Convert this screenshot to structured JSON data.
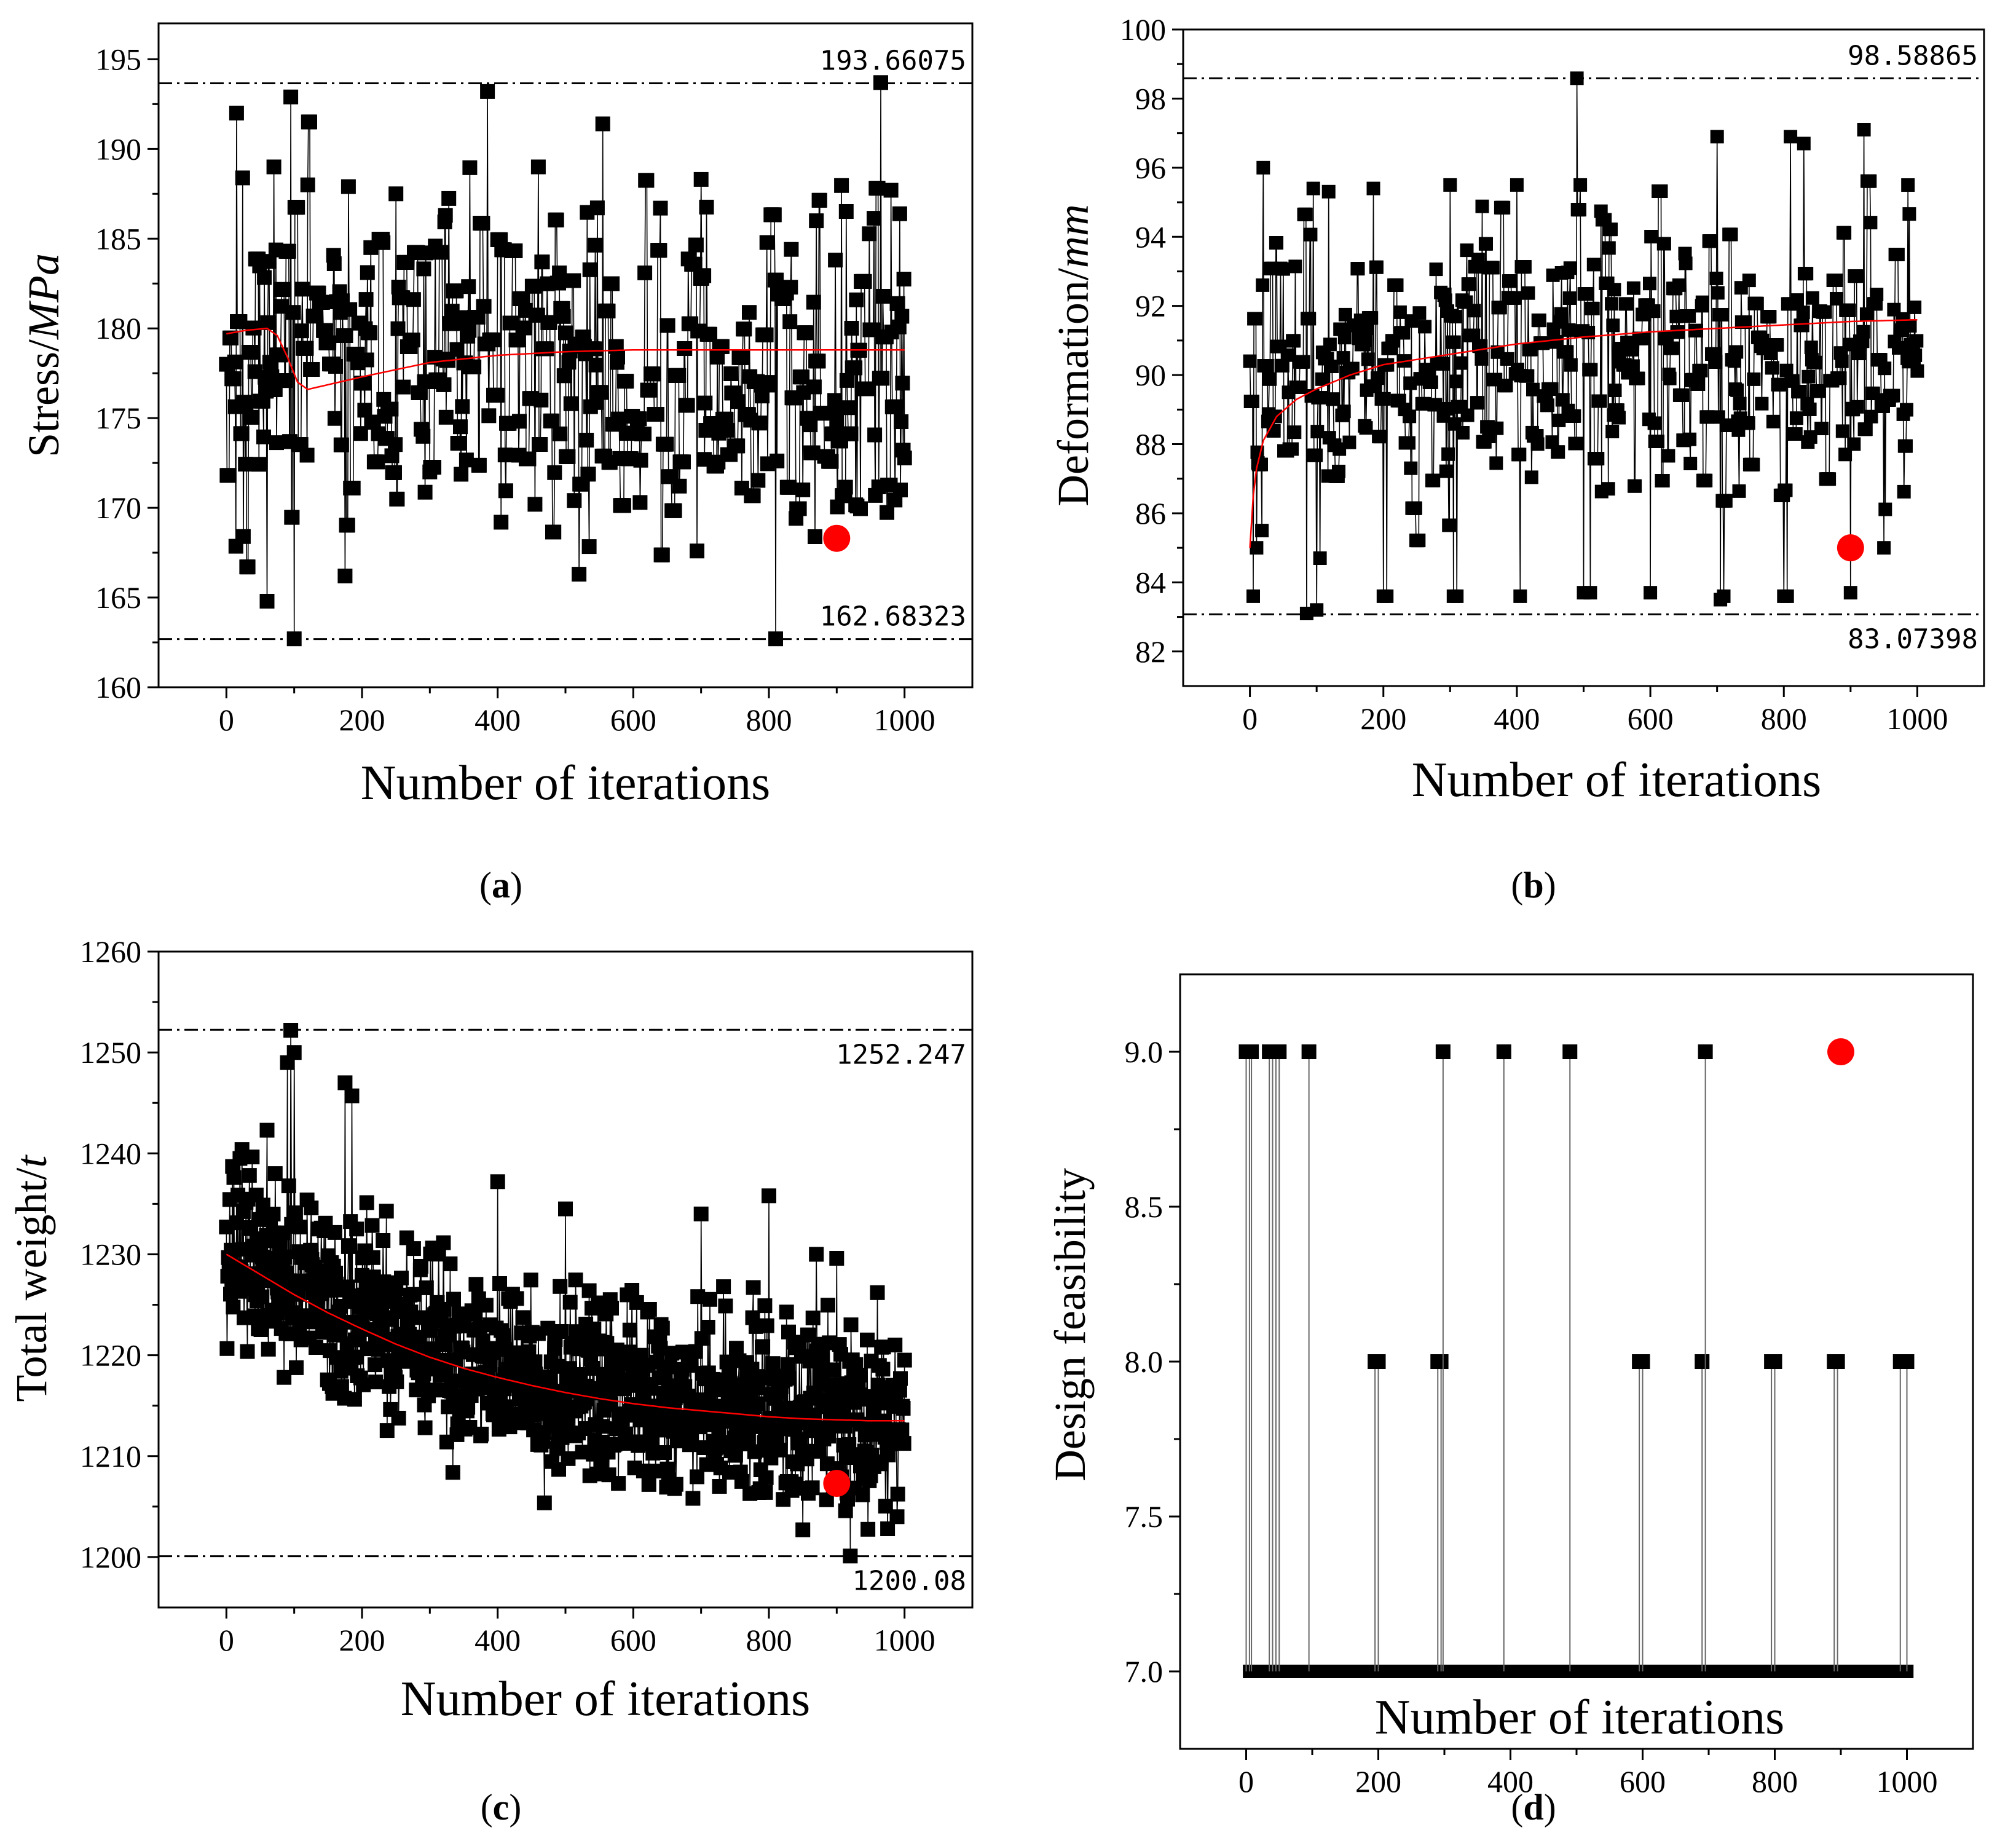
{
  "figure": {
    "panel_labels": [
      {
        "open": "(",
        "letter": "a",
        "close": ")"
      },
      {
        "open": "(",
        "letter": "b",
        "close": ")"
      },
      {
        "open": "(",
        "letter": "c",
        "close": ")"
      },
      {
        "open": "(",
        "letter": "d",
        "close": ")"
      }
    ]
  },
  "colors": {
    "series": "#000000",
    "trend": "#ff0000",
    "best": "#ff0000",
    "bound": "#000000"
  },
  "chart_data": [
    {
      "id": "a",
      "type": "line",
      "xlabel": "Number of iterations",
      "ylabel_prefix": "Stress/",
      "ylabel_italic": "MPa",
      "xlim": [
        -100,
        1100
      ],
      "ylim": [
        160,
        197
      ],
      "xticks": [
        0,
        200,
        400,
        600,
        800,
        1000
      ],
      "yticks": [
        160,
        165,
        170,
        175,
        180,
        185,
        190,
        195
      ],
      "bounds": [
        {
          "value": 193.66075,
          "label": "193.66075",
          "label_pos": "above"
        },
        {
          "value": 162.68323,
          "label": "162.68323",
          "label_pos": "above"
        }
      ],
      "best": {
        "x": 900,
        "y": 168.3
      },
      "trend": [
        [
          0,
          179.7
        ],
        [
          30,
          179.9
        ],
        [
          60,
          180.0
        ],
        [
          75,
          179.6
        ],
        [
          90,
          178.4
        ],
        [
          105,
          177.0
        ],
        [
          120,
          176.6
        ],
        [
          200,
          177.3
        ],
        [
          300,
          178.1
        ],
        [
          400,
          178.5
        ],
        [
          500,
          178.7
        ],
        [
          600,
          178.8
        ],
        [
          700,
          178.8
        ],
        [
          800,
          178.8
        ],
        [
          900,
          178.8
        ],
        [
          1000,
          178.8
        ]
      ],
      "series": {
        "name": "Stress",
        "seed": 11,
        "n": 1000,
        "base": 178,
        "spread": 7,
        "plateau": 0.55,
        "min": 162.68323,
        "max": 193.66075,
        "x": [
          0,
          15,
          25,
          70,
          95,
          100,
          120,
          175,
          180,
          250,
          300,
          385,
          405,
          460,
          520,
          555,
          610,
          640,
          700,
          760,
          810,
          850,
          870,
          900,
          930,
          965,
          980,
          995
        ],
        "y": [
          178,
          192,
          168.4,
          189,
          192.9,
          162.7,
          188,
          166.2,
          187.9,
          187.5,
          172,
          193.2,
          169.2,
          189,
          166.3,
          191.4,
          170.3,
          186.7,
          188.3,
          171.1,
          162.7,
          171,
          186,
          174.8,
          170.1,
          193.7,
          187.7,
          174.8
        ]
      }
    },
    {
      "id": "b",
      "type": "line",
      "xlabel": "Number of iterations",
      "ylabel_prefix": "Deformation/",
      "ylabel_italic": "mm",
      "xlim": [
        -100,
        1100
      ],
      "ylim": [
        81,
        100
      ],
      "xticks": [
        0,
        200,
        400,
        600,
        800,
        1000
      ],
      "yticks": [
        82,
        84,
        86,
        88,
        90,
        92,
        94,
        96,
        98,
        100
      ],
      "bounds": [
        {
          "value": 98.58865,
          "label": "98.58865",
          "label_pos": "above"
        },
        {
          "value": 83.07398,
          "label": "83.07398",
          "label_pos": "below"
        }
      ],
      "best": {
        "x": 900,
        "y": 85.0
      },
      "trend": [
        [
          0,
          85.0
        ],
        [
          5,
          86.5
        ],
        [
          10,
          87.3
        ],
        [
          20,
          88.1
        ],
        [
          40,
          88.8
        ],
        [
          70,
          89.3
        ],
        [
          100,
          89.6
        ],
        [
          150,
          90.0
        ],
        [
          200,
          90.3
        ],
        [
          300,
          90.6
        ],
        [
          400,
          90.9
        ],
        [
          500,
          91.1
        ],
        [
          600,
          91.25
        ],
        [
          700,
          91.35
        ],
        [
          800,
          91.45
        ],
        [
          900,
          91.55
        ],
        [
          1000,
          91.6
        ]
      ],
      "series": {
        "name": "Deformation",
        "seed": 23,
        "n": 1000,
        "base": 90.5,
        "spread": 2.8,
        "plateau": 0.6,
        "min": 83.07398,
        "max": 98.58865,
        "x": [
          0,
          5,
          10,
          18,
          20,
          85,
          95,
          100,
          105,
          185,
          200,
          205,
          300,
          305,
          310,
          400,
          405,
          490,
          495,
          500,
          510,
          600,
          700,
          705,
          710,
          800,
          805,
          810,
          830,
          900,
          905,
          920,
          950
        ],
        "y": [
          90.4,
          83.6,
          85.0,
          85.5,
          96.0,
          83.1,
          95.4,
          83.2,
          84.7,
          95.4,
          83.6,
          83.6,
          95.5,
          83.6,
          83.6,
          95.5,
          83.6,
          98.59,
          95.5,
          83.7,
          83.7,
          83.7,
          96.9,
          83.5,
          83.6,
          83.6,
          83.6,
          96.9,
          96.7,
          83.7,
          88,
          97.1,
          85.0
        ]
      }
    },
    {
      "id": "c",
      "type": "line",
      "xlabel": "Number of iterations",
      "ylabel_prefix": "Total weight/",
      "ylabel_italic": "t",
      "xlim": [
        -100,
        1100
      ],
      "ylim": [
        1195,
        1260
      ],
      "xticks": [
        0,
        200,
        400,
        600,
        800,
        1000
      ],
      "yticks": [
        1200,
        1210,
        1220,
        1230,
        1240,
        1250,
        1260
      ],
      "bounds": [
        {
          "value": 1252.247,
          "label": "1252.247",
          "label_pos": "below"
        },
        {
          "value": 1200.08,
          "label": "1200.08",
          "label_pos": "below"
        }
      ],
      "best": {
        "x": 900,
        "y": 1207.3
      },
      "trend": [
        [
          0,
          1230
        ],
        [
          50,
          1228
        ],
        [
          100,
          1226
        ],
        [
          150,
          1224.2
        ],
        [
          200,
          1222.6
        ],
        [
          250,
          1221.1
        ],
        [
          300,
          1219.8
        ],
        [
          350,
          1218.7
        ],
        [
          400,
          1217.8
        ],
        [
          450,
          1217
        ],
        [
          500,
          1216.3
        ],
        [
          550,
          1215.7
        ],
        [
          600,
          1215.2
        ],
        [
          650,
          1214.8
        ],
        [
          700,
          1214.5
        ],
        [
          750,
          1214.2
        ],
        [
          800,
          1213.9
        ],
        [
          850,
          1213.7
        ],
        [
          900,
          1213.6
        ],
        [
          950,
          1213.5
        ],
        [
          1000,
          1213.5
        ]
      ],
      "series": {
        "name": "Total weight",
        "seed": 37,
        "n": 1000,
        "base": 1222,
        "spread": 6.5,
        "trend_follow": true,
        "min": 1200.08,
        "max": 1252.247,
        "x": [
          0,
          20,
          60,
          90,
          95,
          100,
          175,
          185,
          400,
          500,
          700,
          800,
          850,
          870,
          900,
          920,
          960,
          975
        ],
        "y": [
          1232.7,
          1239.5,
          1242.3,
          1249,
          1252.2,
          1250,
          1247,
          1245.7,
          1237.2,
          1234.5,
          1234,
          1235.8,
          1202.7,
          1230,
          1229.6,
          1200.1,
          1226.2,
          1202.8
        ]
      }
    },
    {
      "id": "d",
      "type": "line",
      "xlabel": "Number of iterations",
      "ylabel_prefix": "Design feasibility",
      "ylabel_italic": "",
      "xlim": [
        -100,
        1100
      ],
      "ylim": [
        6.75,
        9.25
      ],
      "xticks": [
        0,
        200,
        400,
        600,
        800,
        1000
      ],
      "yticks": [
        7.0,
        7.5,
        8.0,
        8.5,
        9.0
      ],
      "ytick_labels": [
        "7.0",
        "7.5",
        "8.0",
        "8.5",
        "9.0"
      ],
      "bounds": [],
      "best": {
        "x": 900,
        "y": 9.0
      },
      "trend": [],
      "series": {
        "name": "Design feasibility",
        "baseline": 7.0,
        "n": 1000,
        "spikes": [
          [
            0,
            9.0
          ],
          [
            5,
            9.0
          ],
          [
            8,
            9.0
          ],
          [
            35,
            9.0
          ],
          [
            40,
            9.0
          ],
          [
            45,
            9.0
          ],
          [
            50,
            9.0
          ],
          [
            95,
            9.0
          ],
          [
            195,
            8.0
          ],
          [
            200,
            8.0
          ],
          [
            290,
            8.0
          ],
          [
            295,
            8.0
          ],
          [
            298,
            9.0
          ],
          [
            390,
            9.0
          ],
          [
            490,
            9.0
          ],
          [
            595,
            8.0
          ],
          [
            600,
            8.0
          ],
          [
            690,
            8.0
          ],
          [
            695,
            9.0
          ],
          [
            795,
            8.0
          ],
          [
            800,
            8.0
          ],
          [
            890,
            8.0
          ],
          [
            895,
            8.0
          ],
          [
            990,
            8.0
          ],
          [
            1000,
            8.0
          ]
        ]
      }
    }
  ]
}
